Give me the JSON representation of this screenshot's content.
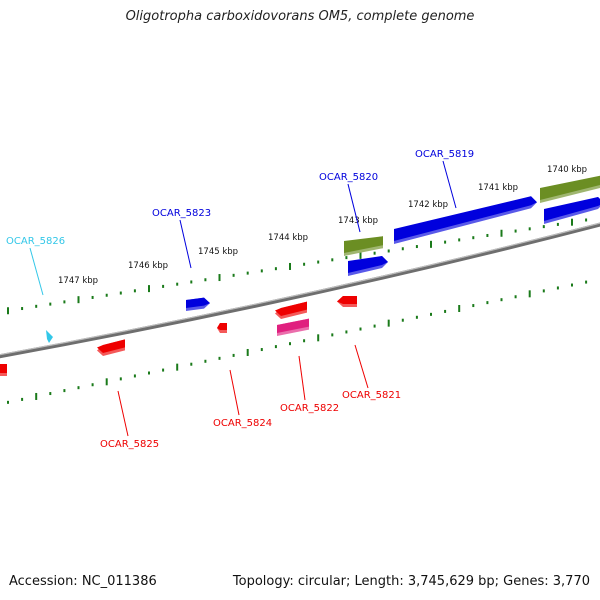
{
  "title": "Oligotropha carboxidovorans OM5, complete genome",
  "footer": {
    "accession": "Accession: NC_011386",
    "summary": "Topology: circular; Length: 3,745,629 bp; Genes: 3,770"
  },
  "colors": {
    "plus_strand": "#0000dd",
    "minus_strand": "#ee0000",
    "rna": "#6b8e23",
    "pseudo": "#e0207f",
    "highlight": "#33c7e8",
    "tick": "#1a7a1a",
    "backbone": "#808080"
  },
  "scale_labels": [
    "1747 kbp",
    "1746 kbp",
    "1745 kbp",
    "1744 kbp",
    "1743 kbp",
    "1742 kbp",
    "1741 kbp",
    "1740 kbp"
  ],
  "gene_labels": [
    {
      "name": "OCAR_5826",
      "type": "highlight"
    },
    {
      "name": "OCAR_5823",
      "type": "plus"
    },
    {
      "name": "OCAR_5820",
      "type": "plus"
    },
    {
      "name": "OCAR_5819",
      "type": "plus"
    },
    {
      "name": "OCAR_5825",
      "type": "minus"
    },
    {
      "name": "OCAR_5824",
      "type": "minus"
    },
    {
      "name": "OCAR_5822",
      "type": "minus"
    },
    {
      "name": "OCAR_5821",
      "type": "minus"
    }
  ]
}
